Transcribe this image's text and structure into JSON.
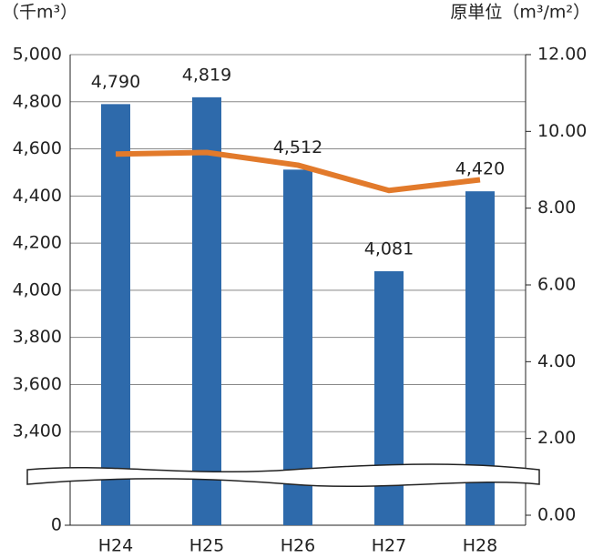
{
  "chart_data": {
    "type": "bar",
    "y_unit": "（千m³）",
    "y2_unit": "原単位（m³/m²）",
    "categories": [
      "H24",
      "H25",
      "H26",
      "H27",
      "H28"
    ],
    "series": [
      {
        "type": "bar",
        "color": "#2e6aab",
        "values": [
          4790,
          4819,
          4512,
          4081,
          4420
        ],
        "value_labels": [
          "4,790",
          "4,819",
          "4,512",
          "4,081",
          "4,420"
        ]
      },
      {
        "type": "line",
        "axis": "y2",
        "color": "#e27a2b",
        "values": [
          9.41,
          9.45,
          9.12,
          8.46,
          8.74
        ]
      }
    ],
    "ylim": [
      0,
      5000
    ],
    "y_break": [
      0,
      3200
    ],
    "yticks": [
      0,
      {
        "value": 3400,
        "label": "3,400"
      },
      {
        "value": 3600,
        "label": "3,600"
      },
      {
        "value": 3800,
        "label": "3,800"
      },
      {
        "value": 4000,
        "label": "4,000"
      },
      {
        "value": 4200,
        "label": "4,200"
      },
      {
        "value": 4400,
        "label": "4,400"
      },
      {
        "value": 4600,
        "label": "4,600"
      },
      {
        "value": 4800,
        "label": "4,800"
      },
      {
        "value": 5000,
        "label": "5,000"
      }
    ],
    "y2lim": [
      0,
      12
    ],
    "y2ticks": [
      {
        "value": 0,
        "label": "0.00"
      },
      {
        "value": 2,
        "label": "2.00"
      },
      {
        "value": 4,
        "label": "4.00"
      },
      {
        "value": 6,
        "label": "6.00"
      },
      {
        "value": 8,
        "label": "8.00"
      },
      {
        "value": 10,
        "label": "10.00"
      },
      {
        "value": 12,
        "label": "12.00"
      }
    ],
    "grid": true
  }
}
